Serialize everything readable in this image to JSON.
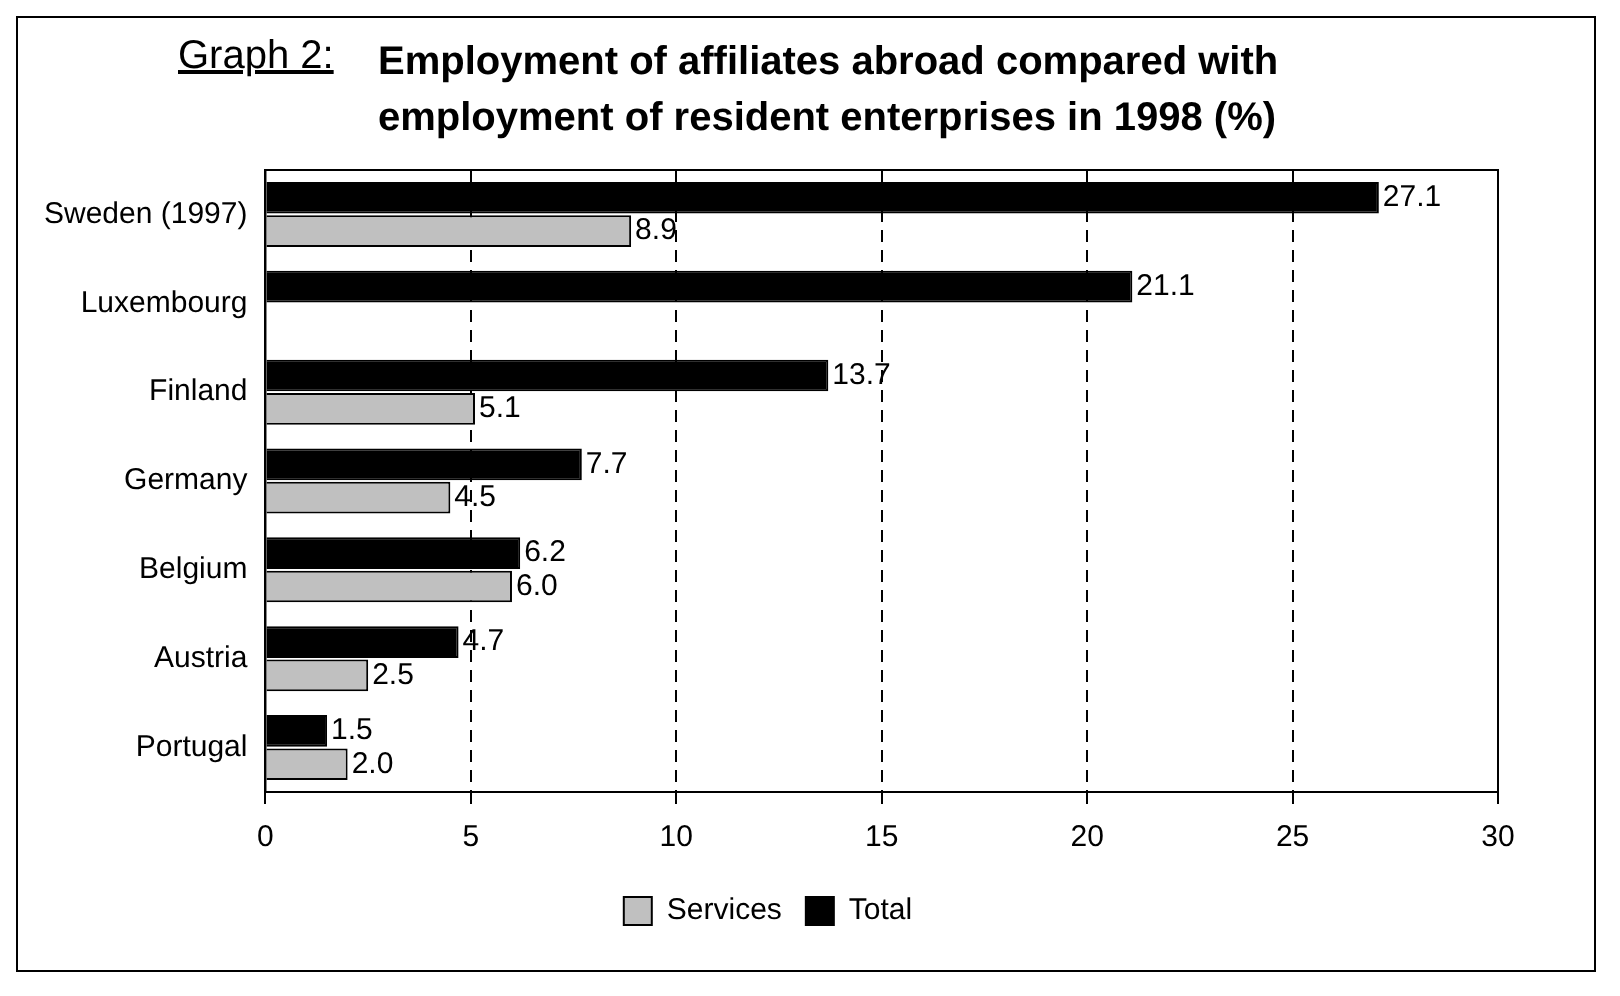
{
  "chart_data": {
    "type": "bar",
    "orientation": "horizontal",
    "title": "Employment of affiliates abroad compared with employment of resident enterprises in 1998 (%)",
    "annotations": [
      "Graph 2:"
    ],
    "categories": [
      "Sweden (1997)",
      "Luxembourg",
      "Finland",
      "Germany",
      "Belgium",
      "Austria",
      "Portugal"
    ],
    "series": [
      {
        "name": "Services",
        "color": "#c0c0c0",
        "values": [
          8.9,
          null,
          5.1,
          4.5,
          6.0,
          2.5,
          2.0
        ],
        "value_labels": [
          "8.9",
          null,
          "5.1",
          "4.5",
          "6.0",
          "2.5",
          "2.0"
        ]
      },
      {
        "name": "Total",
        "color": "#000000",
        "values": [
          27.1,
          21.1,
          13.7,
          7.7,
          6.2,
          4.7,
          1.5
        ],
        "value_labels": [
          "27.1",
          "21.1",
          "13.7",
          "7.7",
          "6.2",
          "4.7",
          "1.5"
        ]
      }
    ],
    "xlim": [
      0,
      30
    ],
    "xticks": [
      0,
      5,
      10,
      15,
      20,
      25,
      30
    ],
    "grid": "x",
    "legend": "bottom"
  }
}
